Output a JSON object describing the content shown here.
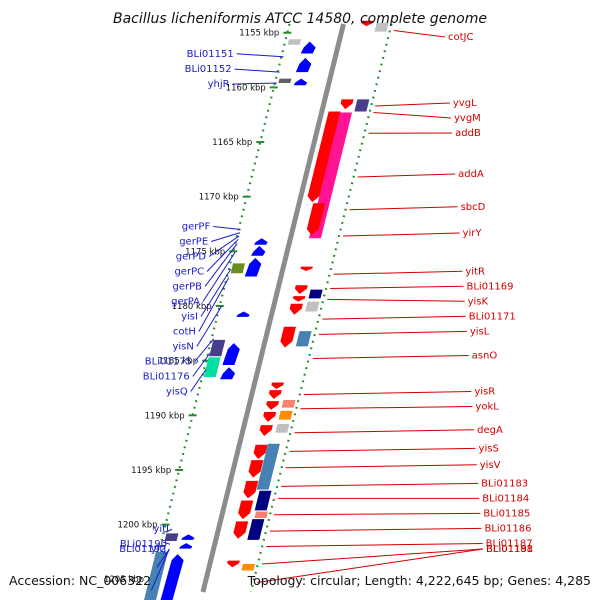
{
  "title": "Bacillus licheniformis ATCC 14580, complete genome",
  "accession": "Accession: NC_006322",
  "summary": "Topology: circular; Length: 4,222,645 bp; Genes: 4,285",
  "colors": {
    "forward_label": "#1a1acc",
    "reverse_label": "#d40000",
    "backbone": "#8c8c8c",
    "gc_track": "#2a8a2a",
    "forward_gene": "#0000ff",
    "reverse_gene": "#ff0000",
    "reverse_gene_alt": "#ff1493",
    "steel": "#4682b4",
    "navy": "#000080",
    "slate": "#483d8b",
    "olive": "#6b8e23",
    "aqua": "#00e0a0",
    "orange": "#ff8c00",
    "salmon": "#fa8072",
    "gray": "#c0c0c0",
    "dark_gray": "#606060"
  },
  "ticks": [
    {
      "label": "1155 kbp",
      "kbp": 1155
    },
    {
      "label": "1160 kbp",
      "kbp": 1160
    },
    {
      "label": "1165 kbp",
      "kbp": 1165
    },
    {
      "label": "1170 kbp",
      "kbp": 1170
    },
    {
      "label": "1175 kbp",
      "kbp": 1175
    },
    {
      "label": "1180 kbp",
      "kbp": 1180
    },
    {
      "label": "1185 kbp",
      "kbp": 1185
    },
    {
      "label": "1190 kbp",
      "kbp": 1190
    },
    {
      "label": "1195 kbp",
      "kbp": 1195
    },
    {
      "label": "1200 kbp",
      "kbp": 1200
    },
    {
      "label": "1205 kbp",
      "kbp": 1205
    }
  ],
  "forward_labels": [
    {
      "name": "BLi01151",
      "kbp": 1157.2
    },
    {
      "name": "BLi01152",
      "kbp": 1158.6
    },
    {
      "name": "yhjR",
      "kbp": 1159.6
    },
    {
      "name": "gerPF",
      "kbp": 1173.0
    },
    {
      "name": "gerPE",
      "kbp": 1173.3
    },
    {
      "name": "gerPD",
      "kbp": 1173.6
    },
    {
      "name": "gerPC",
      "kbp": 1173.9
    },
    {
      "name": "gerPB",
      "kbp": 1174.3
    },
    {
      "name": "gerPA",
      "kbp": 1175.1
    },
    {
      "name": "yisI",
      "kbp": 1176.6
    },
    {
      "name": "cotH",
      "kbp": 1177.4
    },
    {
      "name": "yisN",
      "kbp": 1180.0
    },
    {
      "name": "BLi01175",
      "kbp": 1183.0
    },
    {
      "name": "BLi01176",
      "kbp": 1184.3
    },
    {
      "name": "yisQ",
      "kbp": 1185.8
    },
    {
      "name": "yitI",
      "kbp": 1200.7
    },
    {
      "name": "BLi01190",
      "kbp": 1201.6
    },
    {
      "name": "BLi01192",
      "kbp": 1203.9
    },
    {
      "name": "yitJ",
      "kbp": 1206.0
    }
  ],
  "reverse_labels": [
    {
      "name": "cotJC",
      "kbp": 1154.8
    },
    {
      "name": "yvgL",
      "kbp": 1161.7
    },
    {
      "name": "yvgM",
      "kbp": 1162.3
    },
    {
      "name": "addB",
      "kbp": 1164.2
    },
    {
      "name": "addA",
      "kbp": 1168.2
    },
    {
      "name": "sbcD",
      "kbp": 1171.2
    },
    {
      "name": "yirY",
      "kbp": 1173.6
    },
    {
      "name": "yitR",
      "kbp": 1177.1
    },
    {
      "name": "BLi01169",
      "kbp": 1178.4
    },
    {
      "name": "yisK",
      "kbp": 1179.4
    },
    {
      "name": "BLi01171",
      "kbp": 1181.2
    },
    {
      "name": "yisL",
      "kbp": 1182.6
    },
    {
      "name": "asnO",
      "kbp": 1184.8
    },
    {
      "name": "yisR",
      "kbp": 1188.1
    },
    {
      "name": "yokL",
      "kbp": 1189.4
    },
    {
      "name": "degA",
      "kbp": 1191.6
    },
    {
      "name": "yisS",
      "kbp": 1193.3
    },
    {
      "name": "yisV",
      "kbp": 1194.8
    },
    {
      "name": "BLi01183",
      "kbp": 1196.5
    },
    {
      "name": "BLi01184",
      "kbp": 1197.6
    },
    {
      "name": "BLi01185",
      "kbp": 1199.1
    },
    {
      "name": "BLi01186",
      "kbp": 1200.6
    },
    {
      "name": "BLi01187",
      "kbp": 1202.0
    },
    {
      "name": "BLi01188",
      "kbp": 1203.6
    },
    {
      "name": "BLi01191",
      "kbp": 1205.3
    }
  ],
  "features": [
    {
      "strand": "-",
      "track": 1,
      "start": 1153.9,
      "end": 1154.4,
      "color": "reverse_gene"
    },
    {
      "strand": "-",
      "track": 2,
      "start": 1154.1,
      "end": 1154.9,
      "color": "gray"
    },
    {
      "strand": "+",
      "track": 2,
      "start": 1155.6,
      "end": 1156.1,
      "color": "gray"
    },
    {
      "strand": "+",
      "track": 1,
      "start": 1155.8,
      "end": 1156.9,
      "color": "forward_gene"
    },
    {
      "strand": "+",
      "track": 1,
      "start": 1157.3,
      "end": 1158.6,
      "color": "forward_gene"
    },
    {
      "strand": "+",
      "track": 2,
      "start": 1159.2,
      "end": 1159.6,
      "color": "dark_gray"
    },
    {
      "strand": "+",
      "track": 1,
      "start": 1159.2,
      "end": 1159.8,
      "color": "forward_gene"
    },
    {
      "strand": "-",
      "track": 1,
      "start": 1161.1,
      "end": 1162.0,
      "color": "reverse_gene"
    },
    {
      "strand": "-",
      "track": 2,
      "start": 1161.1,
      "end": 1162.2,
      "color": "slate"
    },
    {
      "strand": "-",
      "track": 1,
      "start": 1162.2,
      "end": 1170.5,
      "color": "reverse_gene"
    },
    {
      "strand": "-",
      "track": 2,
      "start": 1162.3,
      "end": 1173.8,
      "color": "reverse_gene_alt"
    },
    {
      "strand": "-",
      "track": 1,
      "start": 1170.6,
      "end": 1173.5,
      "color": "reverse_gene"
    },
    {
      "strand": "+",
      "track": 1,
      "start": 1173.8,
      "end": 1174.4,
      "color": "forward_gene"
    },
    {
      "strand": "+",
      "track": 1,
      "start": 1174.5,
      "end": 1175.4,
      "color": "forward_gene"
    },
    {
      "strand": "+",
      "track": 2,
      "start": 1176.1,
      "end": 1177.0,
      "color": "olive"
    },
    {
      "strand": "+",
      "track": 1,
      "start": 1175.6,
      "end": 1177.3,
      "color": "forward_gene"
    },
    {
      "strand": "-",
      "track": 1,
      "start": 1176.4,
      "end": 1176.8,
      "color": "reverse_gene"
    },
    {
      "strand": "-",
      "track": 1,
      "start": 1178.1,
      "end": 1178.9,
      "color": "reverse_gene"
    },
    {
      "strand": "-",
      "track": 2,
      "start": 1178.5,
      "end": 1179.3,
      "color": "navy"
    },
    {
      "strand": "-",
      "track": 1,
      "start": 1179.1,
      "end": 1179.6,
      "color": "reverse_gene"
    },
    {
      "strand": "-",
      "track": 2,
      "start": 1179.6,
      "end": 1180.5,
      "color": "gray"
    },
    {
      "strand": "-",
      "track": 1,
      "start": 1179.8,
      "end": 1180.8,
      "color": "reverse_gene"
    },
    {
      "strand": "+",
      "track": 1,
      "start": 1180.5,
      "end": 1181.0,
      "color": "forward_gene"
    },
    {
      "strand": "-",
      "track": 1,
      "start": 1181.9,
      "end": 1183.8,
      "color": "reverse_gene"
    },
    {
      "strand": "-",
      "track": 2,
      "start": 1182.3,
      "end": 1183.7,
      "color": "steel"
    },
    {
      "strand": "+",
      "track": 2,
      "start": 1183.1,
      "end": 1184.6,
      "color": "slate"
    },
    {
      "strand": "+",
      "track": 1,
      "start": 1183.4,
      "end": 1185.4,
      "color": "forward_gene"
    },
    {
      "strand": "+",
      "track": 2,
      "start": 1184.7,
      "end": 1186.5,
      "color": "aqua"
    },
    {
      "strand": "+",
      "track": 1,
      "start": 1185.6,
      "end": 1186.7,
      "color": "forward_gene"
    },
    {
      "strand": "-",
      "track": 1,
      "start": 1187.0,
      "end": 1187.6,
      "color": "reverse_gene"
    },
    {
      "strand": "-",
      "track": 1,
      "start": 1187.7,
      "end": 1188.5,
      "color": "reverse_gene"
    },
    {
      "strand": "-",
      "track": 2,
      "start": 1188.6,
      "end": 1189.3,
      "color": "salmon"
    },
    {
      "strand": "-",
      "track": 1,
      "start": 1188.7,
      "end": 1189.5,
      "color": "reverse_gene"
    },
    {
      "strand": "-",
      "track": 2,
      "start": 1189.6,
      "end": 1190.4,
      "color": "orange"
    },
    {
      "strand": "-",
      "track": 1,
      "start": 1189.7,
      "end": 1190.6,
      "color": "reverse_gene"
    },
    {
      "strand": "-",
      "track": 2,
      "start": 1190.8,
      "end": 1191.6,
      "color": "gray"
    },
    {
      "strand": "-",
      "track": 1,
      "start": 1190.9,
      "end": 1191.9,
      "color": "reverse_gene"
    },
    {
      "strand": "-",
      "track": 1,
      "start": 1192.7,
      "end": 1194.0,
      "color": "reverse_gene"
    },
    {
      "strand": "-",
      "track": 2,
      "start": 1192.6,
      "end": 1196.8,
      "color": "steel"
    },
    {
      "strand": "-",
      "track": 1,
      "start": 1194.1,
      "end": 1195.7,
      "color": "reverse_gene"
    },
    {
      "strand": "-",
      "track": 2,
      "start": 1196.9,
      "end": 1198.7,
      "color": "navy"
    },
    {
      "strand": "-",
      "track": 1,
      "start": 1196.0,
      "end": 1197.6,
      "color": "reverse_gene"
    },
    {
      "strand": "-",
      "track": 1,
      "start": 1197.8,
      "end": 1199.5,
      "color": "reverse_gene"
    },
    {
      "strand": "-",
      "track": 2,
      "start": 1198.8,
      "end": 1199.4,
      "color": "salmon"
    },
    {
      "strand": "-",
      "track": 2,
      "start": 1199.5,
      "end": 1201.4,
      "color": "navy"
    },
    {
      "strand": "-",
      "track": 1,
      "start": 1199.7,
      "end": 1201.3,
      "color": "reverse_gene"
    },
    {
      "strand": "+",
      "track": 2,
      "start": 1200.8,
      "end": 1201.5,
      "color": "slate"
    },
    {
      "strand": "+",
      "track": 1,
      "start": 1200.9,
      "end": 1201.4,
      "color": "forward_gene"
    },
    {
      "strand": "+",
      "track": 1,
      "start": 1201.7,
      "end": 1202.2,
      "color": "forward_gene"
    },
    {
      "strand": "-",
      "track": 1,
      "start": 1203.3,
      "end": 1203.9,
      "color": "reverse_gene"
    },
    {
      "strand": "-",
      "track": 2,
      "start": 1203.6,
      "end": 1204.2,
      "color": "orange"
    },
    {
      "strand": "+",
      "track": 2,
      "start": 1202.5,
      "end": 1207.6,
      "color": "steel"
    },
    {
      "strand": "+",
      "track": 1,
      "start": 1202.7,
      "end": 1207.6,
      "color": "forward_gene"
    }
  ]
}
